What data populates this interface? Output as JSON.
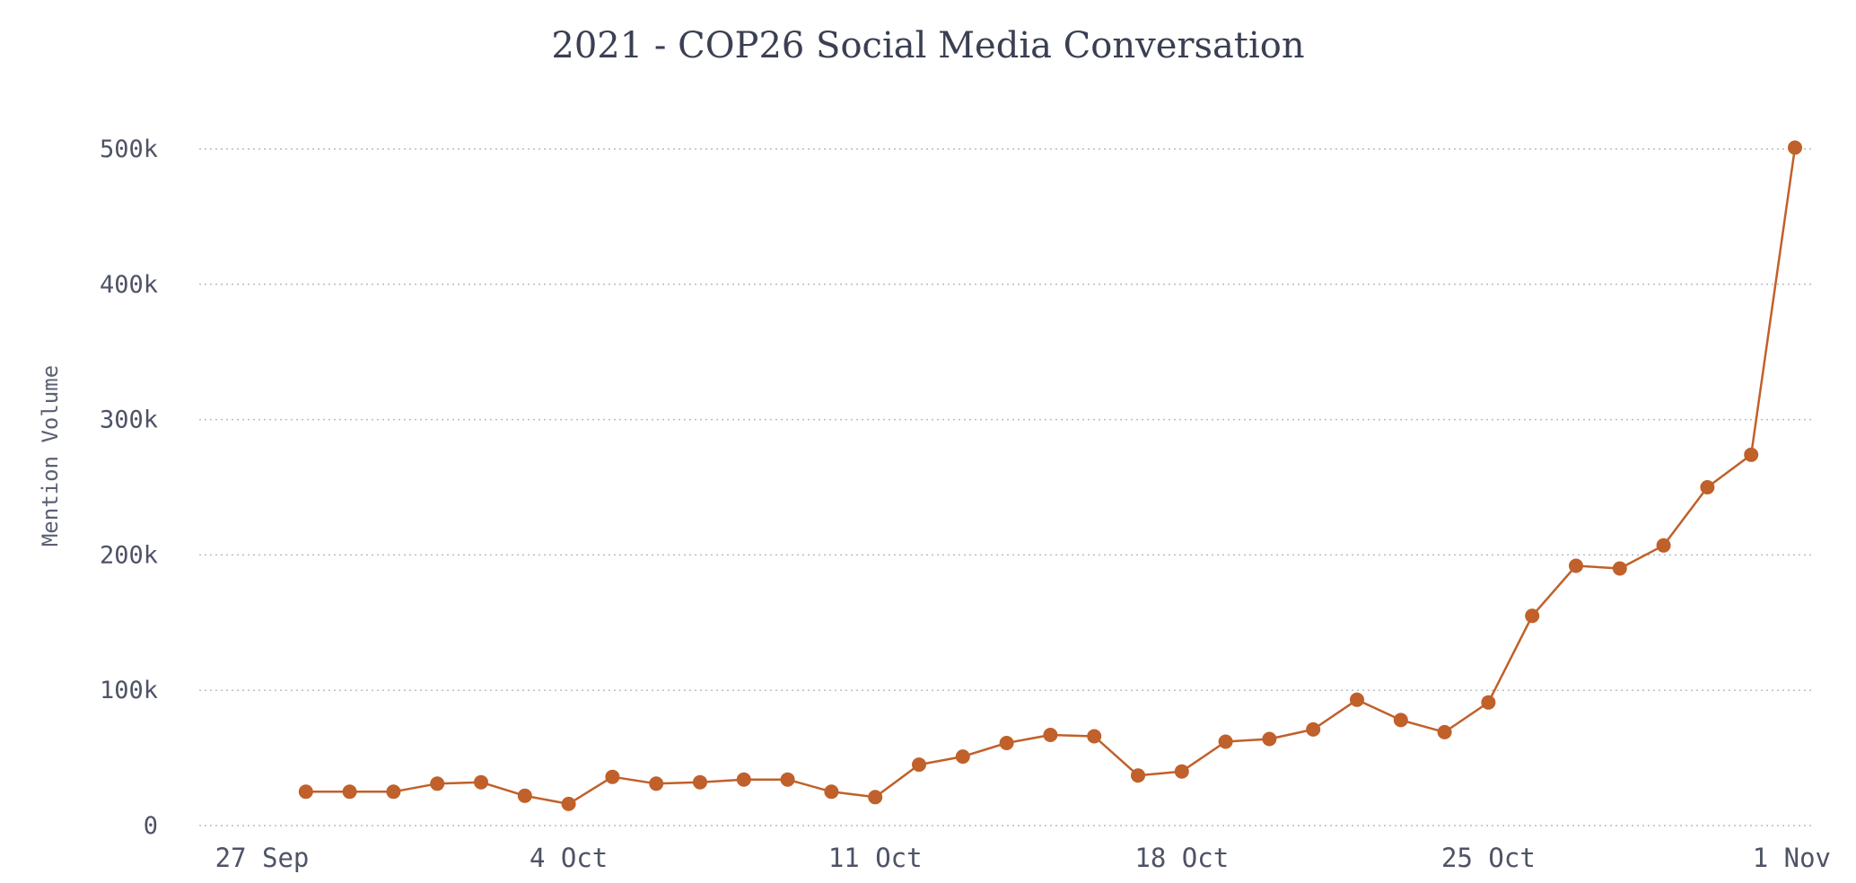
{
  "chart_data": {
    "type": "line",
    "title": "2021 - COP26 Social Media Conversation",
    "xlabel": "",
    "ylabel": "Mention Volume",
    "x_tick_labels": [
      {
        "date": "2021-09-27",
        "label": "27 Sep"
      },
      {
        "date": "2021-10-04",
        "label": "4 Oct"
      },
      {
        "date": "2021-10-11",
        "label": "11 Oct"
      },
      {
        "date": "2021-10-18",
        "label": "18 Oct"
      },
      {
        "date": "2021-10-25",
        "label": "25 Oct"
      },
      {
        "date": "2021-11-01",
        "label": "1 Nov"
      }
    ],
    "y_ticks": [
      {
        "value": 0,
        "label": "0"
      },
      {
        "value": 100000,
        "label": "100k"
      },
      {
        "value": 200000,
        "label": "200k"
      },
      {
        "value": 300000,
        "label": "300k"
      },
      {
        "value": 400000,
        "label": "400k"
      },
      {
        "value": 500000,
        "label": "500k"
      }
    ],
    "ylim": [
      0,
      500000
    ],
    "xlim": [
      "2021-09-27",
      "2021-11-01"
    ],
    "grid": true,
    "series": [
      {
        "color": "#c0602a",
        "points": [
          {
            "x": "2021-09-28",
            "y": 25000
          },
          {
            "x": "2021-09-29",
            "y": 25000
          },
          {
            "x": "2021-09-30",
            "y": 25000
          },
          {
            "x": "2021-10-01",
            "y": 31000
          },
          {
            "x": "2021-10-02",
            "y": 32000
          },
          {
            "x": "2021-10-03",
            "y": 22000
          },
          {
            "x": "2021-10-04",
            "y": 16000
          },
          {
            "x": "2021-10-05",
            "y": 36000
          },
          {
            "x": "2021-10-06",
            "y": 31000
          },
          {
            "x": "2021-10-07",
            "y": 32000
          },
          {
            "x": "2021-10-08",
            "y": 34000
          },
          {
            "x": "2021-10-09",
            "y": 34000
          },
          {
            "x": "2021-10-10",
            "y": 25000
          },
          {
            "x": "2021-10-11",
            "y": 21000
          },
          {
            "x": "2021-10-12",
            "y": 45000
          },
          {
            "x": "2021-10-13",
            "y": 51000
          },
          {
            "x": "2021-10-14",
            "y": 61000
          },
          {
            "x": "2021-10-15",
            "y": 67000
          },
          {
            "x": "2021-10-16",
            "y": 66000
          },
          {
            "x": "2021-10-17",
            "y": 37000
          },
          {
            "x": "2021-10-18",
            "y": 40000
          },
          {
            "x": "2021-10-19",
            "y": 62000
          },
          {
            "x": "2021-10-20",
            "y": 64000
          },
          {
            "x": "2021-10-21",
            "y": 71000
          },
          {
            "x": "2021-10-22",
            "y": 93000
          },
          {
            "x": "2021-10-23",
            "y": 78000
          },
          {
            "x": "2021-10-24",
            "y": 69000
          },
          {
            "x": "2021-10-25",
            "y": 91000
          },
          {
            "x": "2021-10-26",
            "y": 155000
          },
          {
            "x": "2021-10-27",
            "y": 192000
          },
          {
            "x": "2021-10-28",
            "y": 190000
          },
          {
            "x": "2021-10-29",
            "y": 207000
          },
          {
            "x": "2021-10-30",
            "y": 250000
          },
          {
            "x": "2021-10-31",
            "y": 274000
          },
          {
            "x": "2021-11-01",
            "y": 501000
          }
        ]
      }
    ]
  }
}
